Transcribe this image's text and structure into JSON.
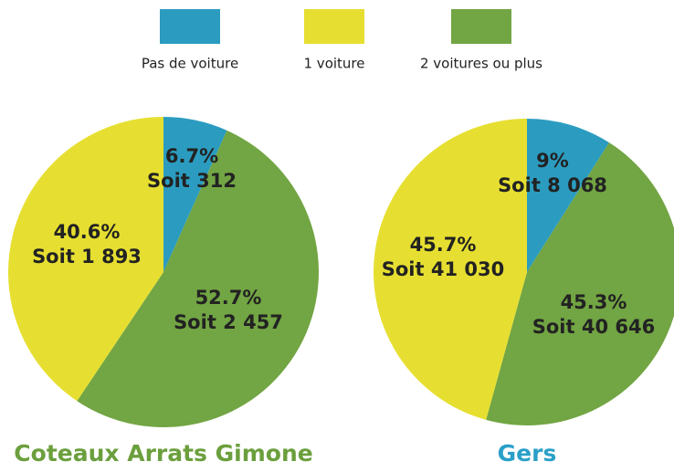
{
  "legend": [
    {
      "name": "Pas de voiture",
      "color": "#2b9cc0"
    },
    {
      "name": "1 voiture",
      "color": "#e6df31"
    },
    {
      "name": "2 voitures ou plus",
      "color": "#72a543"
    }
  ],
  "chart_data": [
    {
      "type": "pie",
      "title": "Coteaux Arrats Gimone",
      "title_color": "#6b9f3d",
      "values": [
        6.7,
        40.6,
        52.7
      ],
      "value_labels": [
        "6.7%",
        "40.6%",
        "52.7%"
      ],
      "counts": [
        312,
        1893,
        2457
      ],
      "count_labels": [
        "Soit 312",
        "Soit 1 893",
        "Soit 2 457"
      ]
    },
    {
      "type": "pie",
      "title": "Gers",
      "title_color": "#2aa0c8",
      "values": [
        9,
        45.7,
        45.3
      ],
      "value_labels": [
        "9%",
        "45.7%",
        "45.3%"
      ],
      "counts": [
        8068,
        41030,
        40646
      ],
      "count_labels": [
        "Soit 8 068",
        "Soit 41 030",
        "Soit 40 646"
      ]
    }
  ]
}
